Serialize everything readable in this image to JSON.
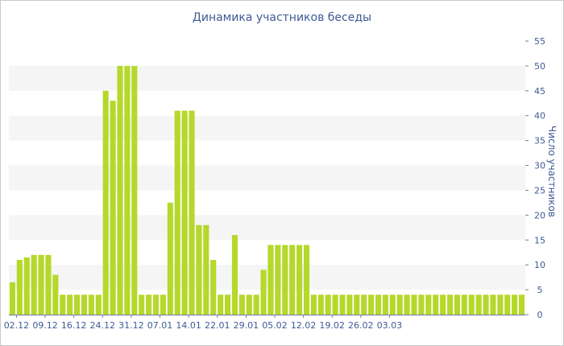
{
  "chart_data": {
    "type": "bar",
    "title": "Динамика участников беседы",
    "ylabel": "Число участников",
    "xlabel": "",
    "ylim": [
      0,
      55
    ],
    "y_ticks": [
      0,
      5,
      10,
      15,
      20,
      25,
      30,
      35,
      40,
      45,
      50,
      55
    ],
    "y_axis_side": "right",
    "grid": "horizontal alternating bands",
    "x_tick_labels": [
      "02.12",
      "09.12",
      "16.12",
      "24.12",
      "31.12",
      "07.01",
      "14.01",
      "22.01",
      "29.01",
      "05.02",
      "12.02",
      "19.02",
      "26.02",
      "03.03"
    ],
    "series": [
      {
        "color": "#b5d82a",
        "values": [
          6.5,
          11,
          11.5,
          12,
          12,
          12,
          8,
          4,
          4,
          4,
          4,
          4,
          4,
          45,
          43,
          50,
          50,
          50,
          4,
          4,
          4,
          4,
          22.5,
          41,
          41,
          41,
          18,
          18,
          11,
          4,
          4,
          16,
          4,
          4,
          4,
          9,
          14,
          14,
          14,
          14,
          14,
          14,
          4,
          4,
          4,
          4,
          4,
          4,
          4,
          4,
          4,
          4,
          4,
          4,
          4,
          4,
          4,
          4,
          4,
          4,
          4,
          4,
          4,
          4,
          4,
          4,
          4,
          4,
          4,
          4,
          4,
          4
        ]
      }
    ]
  }
}
